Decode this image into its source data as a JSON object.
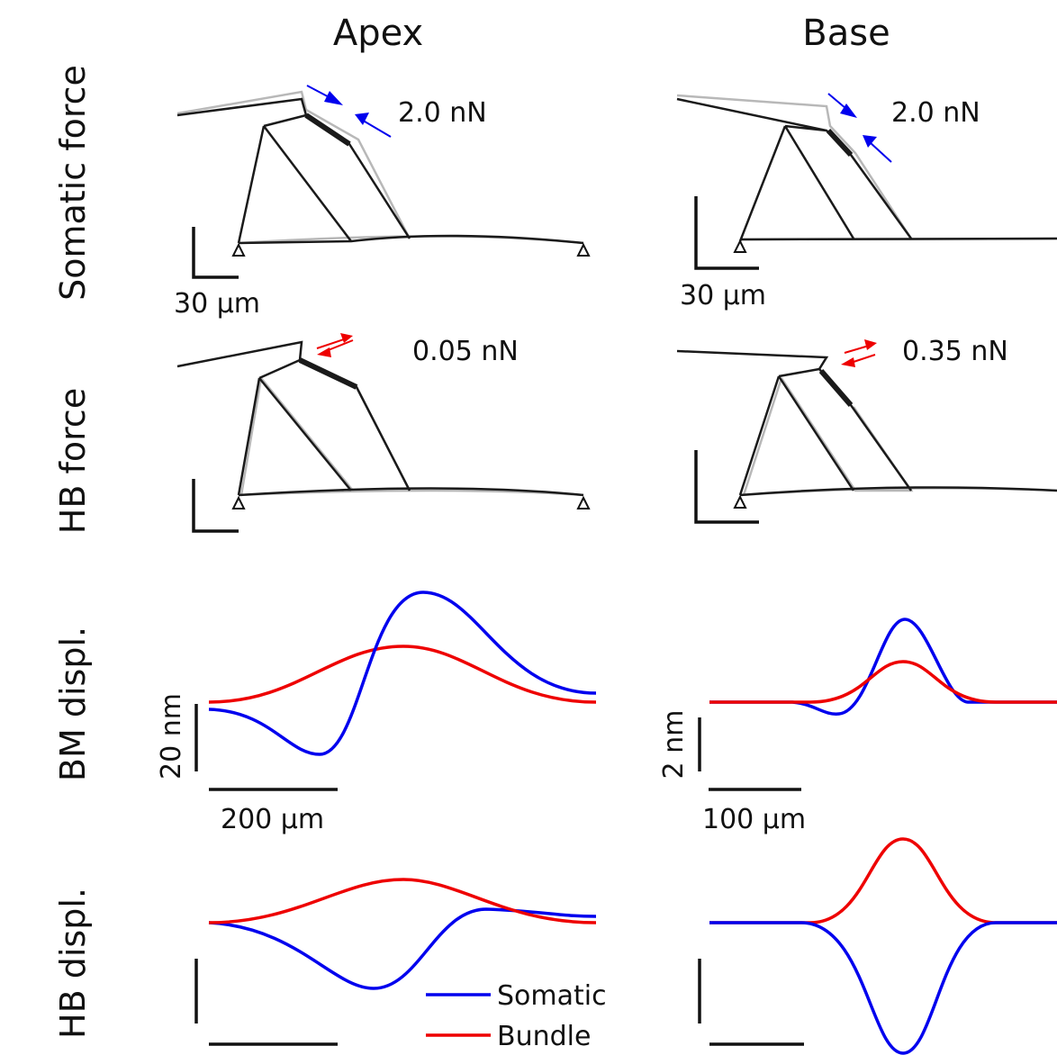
{
  "columns": [
    "Apex",
    "Base"
  ],
  "rows": [
    "Somatic force",
    "HB force",
    "BM displ.",
    "HB displ."
  ],
  "force_labels": {
    "apex_somatic": "2.0 nN",
    "base_somatic": "2.0 nN",
    "apex_hb": "0.05 nN",
    "base_hb": "0.35 nN"
  },
  "scale_bars": {
    "apex_structure": "30 μm",
    "base_structure": "30 μm",
    "apex_bm_y": "20 nm",
    "apex_bm_x": "200 μm",
    "base_bm_y": "2 nm",
    "base_bm_x": "100 μm"
  },
  "legend": [
    {
      "name": "Somatic",
      "color": "#0000ee"
    },
    {
      "name": "Bundle",
      "color": "#ee0000"
    }
  ]
}
